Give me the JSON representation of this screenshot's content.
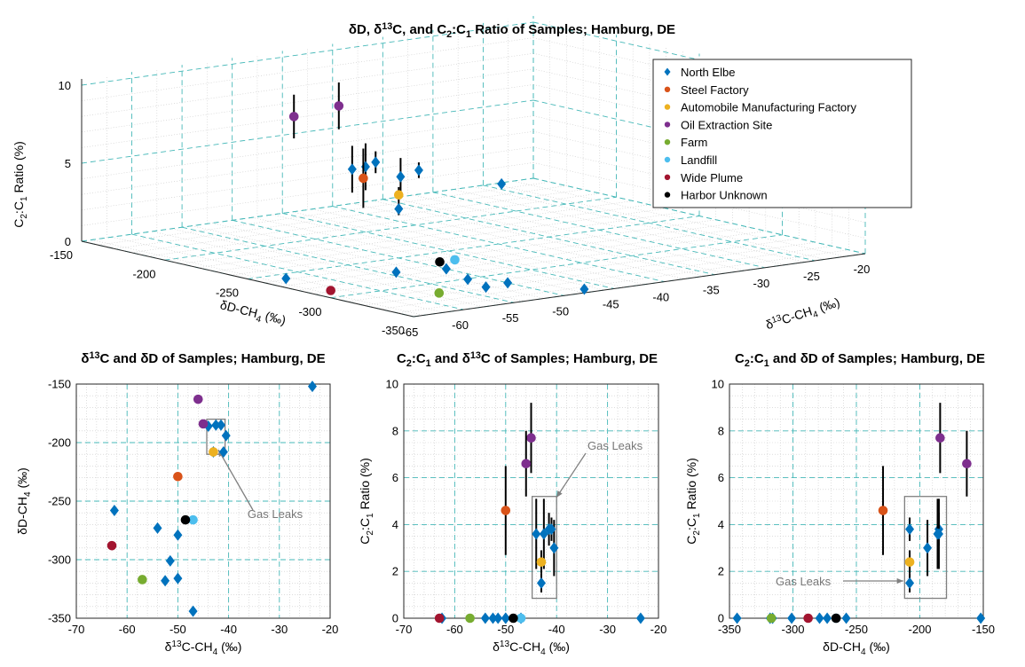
{
  "colors": {
    "grid": "#46b8b8",
    "minor_grid": "#c9c9c9",
    "axis": "#262626",
    "annotation": "#808080"
  },
  "chart_data": [
    {
      "id": "3d",
      "type": "scatter",
      "title": "δD, δ13C, and C2:C1 Ratio of Samples; Hamburg, DE",
      "xlabel": "δD-CH4 (‰)",
      "ylabel": "δ13C-CH4 (‰)",
      "zlabel": "C2:C1 Ratio (%)",
      "xticks": [
        "-150",
        "-200",
        "-250",
        "-300",
        "-350"
      ],
      "yticks": [
        "-20",
        "-25",
        "-30",
        "-35",
        "-40",
        "-45",
        "-50",
        "-55",
        "-60",
        "-65"
      ],
      "zticks": [
        "0",
        "5",
        "10"
      ],
      "legend_position": "top-right",
      "grid": true
    },
    {
      "id": "p1",
      "type": "scatter",
      "title": "δ13C and δD of Samples; Hamburg, DE",
      "xlabel": "δ13C-CH4 (‰)",
      "ylabel": "δD-CH4 (‰)",
      "xlim": [
        -70,
        -20
      ],
      "ylim": [
        -350,
        -150
      ],
      "xticks": [
        "-70",
        "-60",
        "-50",
        "-40",
        "-30",
        "-20"
      ],
      "yticks": [
        "-350",
        "-300",
        "-250",
        "-200",
        "-150"
      ],
      "annotation": "Gas Leaks",
      "grid": true
    },
    {
      "id": "p2",
      "type": "scatter",
      "title": "C2:C1 and δ13C of Samples; Hamburg, DE",
      "xlabel": "δ13C-CH4 (‰)",
      "ylabel": "C2:C1 Ratio (%)",
      "xlim": [
        -70,
        -20
      ],
      "ylim": [
        0,
        10
      ],
      "xticks": [
        "-70",
        "-60",
        "-50",
        "-40",
        "-30",
        "-20"
      ],
      "yticks": [
        "0",
        "2",
        "4",
        "6",
        "8",
        "10"
      ],
      "annotation": "Gas Leaks",
      "grid": true
    },
    {
      "id": "p3",
      "type": "scatter",
      "title": "C2:C1 and δD of Samples; Hamburg, DE",
      "xlabel": "δD-CH4 (‰)",
      "ylabel": "C2:C1 Ratio (%)",
      "xlim": [
        -350,
        -150
      ],
      "ylim": [
        0,
        10
      ],
      "xticks": [
        "-350",
        "-300",
        "-250",
        "-200",
        "-150"
      ],
      "yticks": [
        "0",
        "2",
        "4",
        "6",
        "8",
        "10"
      ],
      "annotation": "Gas Leaks",
      "grid": true
    }
  ],
  "series": [
    {
      "name": "North Elbe",
      "color": "#0072bd",
      "marker": "diamond",
      "points": [
        {
          "d13c": -41.5,
          "dd": -185,
          "c2c1": 3.8,
          "err": 0.7
        },
        {
          "d13c": -42.5,
          "dd": -185,
          "c2c1": 3.6,
          "err": 1.5
        },
        {
          "d13c": -40.5,
          "dd": -194,
          "c2c1": 3.0,
          "err": 1.2
        },
        {
          "d13c": -44.0,
          "dd": -186,
          "c2c1": 3.6,
          "err": 1.5
        },
        {
          "d13c": -43.0,
          "dd": -208,
          "c2c1": 1.5,
          "err": 0.4
        },
        {
          "d13c": -41.0,
          "dd": -208,
          "c2c1": 3.8,
          "err": 0.5
        },
        {
          "d13c": -23.5,
          "dd": -152,
          "c2c1": 0
        },
        {
          "d13c": -62.5,
          "dd": -258,
          "c2c1": 0
        },
        {
          "d13c": -54.0,
          "dd": -273,
          "c2c1": 0
        },
        {
          "d13c": -50.0,
          "dd": -279,
          "c2c1": 0
        },
        {
          "d13c": -51.5,
          "dd": -301,
          "c2c1": 0
        },
        {
          "d13c": -50.0,
          "dd": -316,
          "c2c1": 0
        },
        {
          "d13c": -52.5,
          "dd": -318,
          "c2c1": 0
        },
        {
          "d13c": -47.0,
          "dd": -344,
          "c2c1": 0
        }
      ]
    },
    {
      "name": "Steel Factory",
      "color": "#d95319",
      "marker": "circle",
      "points": [
        {
          "d13c": -50.0,
          "dd": -229,
          "c2c1": 4.6,
          "err": 1.9
        }
      ]
    },
    {
      "name": "Automobile Manufacturing Factory",
      "color": "#edb120",
      "marker": "circle",
      "points": [
        {
          "d13c": -43.0,
          "dd": -208,
          "c2c1": 2.4,
          "err": 0.5
        }
      ]
    },
    {
      "name": "Oil Extraction Site",
      "color": "#7e2f8e",
      "marker": "circle",
      "points": [
        {
          "d13c": -45.0,
          "dd": -184,
          "c2c1": 7.7,
          "err": 1.5
        },
        {
          "d13c": -46.0,
          "dd": -163,
          "c2c1": 6.6,
          "err": 1.4
        }
      ]
    },
    {
      "name": "Farm",
      "color": "#77ac30",
      "marker": "circle",
      "points": [
        {
          "d13c": -57.0,
          "dd": -317,
          "c2c1": 0
        }
      ]
    },
    {
      "name": "Landfill",
      "color": "#4dbeee",
      "marker": "circle",
      "points": [
        {
          "d13c": -47.0,
          "dd": -266,
          "c2c1": 0
        }
      ]
    },
    {
      "name": "Wide Plume",
      "color": "#a2142f",
      "marker": "circle",
      "points": [
        {
          "d13c": -63.0,
          "dd": -288,
          "c2c1": 0
        }
      ]
    },
    {
      "name": "Harbor Unknown",
      "color": "#000000",
      "marker": "circle",
      "points": [
        {
          "d13c": -48.5,
          "dd": -266,
          "c2c1": 0
        }
      ]
    }
  ]
}
